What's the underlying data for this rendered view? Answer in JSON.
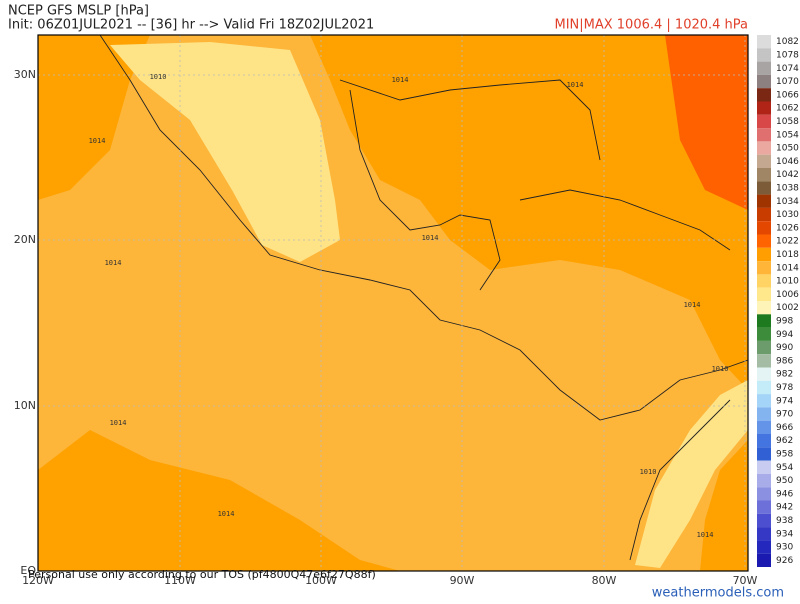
{
  "header": {
    "title": "NCEP GFS MSLP [hPa]",
    "subtitle": "Init: 06Z01JUL2021 -- [36] hr --> Valid Fri 18Z02JUL2021",
    "minmax": "MIN|MAX 1006.4 | 1020.4 hPa"
  },
  "axes": {
    "lat_labels": [
      "30N",
      "20N",
      "10N",
      "EQ"
    ],
    "lon_labels": [
      "120W",
      "110W",
      "100W",
      "90W",
      "80W",
      "70W"
    ]
  },
  "colorbar": {
    "labels": [
      "1082",
      "1078",
      "1074",
      "1070",
      "1066",
      "1062",
      "1058",
      "1054",
      "1050",
      "1046",
      "1042",
      "1038",
      "1034",
      "1030",
      "1026",
      "1022",
      "1018",
      "1014",
      "1010",
      "1006",
      "1002",
      "998",
      "994",
      "990",
      "986",
      "982",
      "978",
      "974",
      "970",
      "966",
      "962",
      "958",
      "954",
      "950",
      "946",
      "942",
      "938",
      "934",
      "930",
      "926"
    ],
    "colors": [
      "#dcdcdc",
      "#c4c4c4",
      "#a8a4a4",
      "#8c8080",
      "#7a2814",
      "#b02418",
      "#d84848",
      "#e07070",
      "#eaa8a0",
      "#c4a890",
      "#a08664",
      "#7c5c38",
      "#a03400",
      "#c83c00",
      "#e44800",
      "#ff6400",
      "#ff9e00",
      "#ffb638",
      "#ffd464",
      "#ffe88c",
      "#fff4b8",
      "#1e7a1e",
      "#3c8c3c",
      "#6c9c6c",
      "#a4bca4",
      "#e4f4f4",
      "#c4ecf8",
      "#a4d4f8",
      "#84b4f0",
      "#6494e8",
      "#4474e0",
      "#3060d4",
      "#c8ccf0",
      "#a8ace8",
      "#8c90e0",
      "#6c70d8",
      "#4c50d0",
      "#3438c4",
      "#2428bc",
      "#1a1ab0"
    ]
  },
  "contour_labels": [
    "1010",
    "1014",
    "1014",
    "1014",
    "1014",
    "1014",
    "1014",
    "1014",
    "1014",
    "1010",
    "1010",
    "1014"
  ],
  "footer": {
    "disclaimer": "Personal use only according to our TOS (pf4800Q47e6f27Q88f)",
    "site": "weathermodels.com"
  }
}
